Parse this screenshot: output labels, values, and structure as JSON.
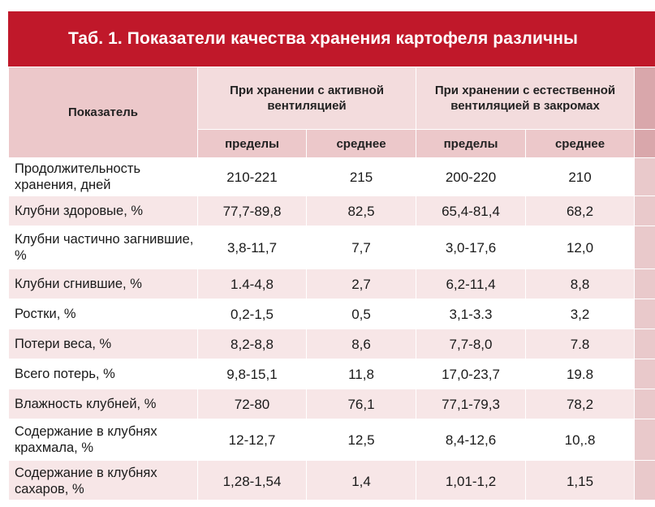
{
  "title": "Таб. 1. Показатели качества хранения картофеля различны",
  "header": {
    "indicator": "Показатель",
    "group_active": "При хранении с активной вентиляцией",
    "group_natural": "При хранении с естественной вентиляцией в закромах",
    "limits": "пределы",
    "average": "среднее"
  },
  "rows": [
    {
      "label": "Продолжительность хранения, дней",
      "active_limits": "210-221",
      "active_avg": "215",
      "natural_limits": "200-220",
      "natural_avg": "210"
    },
    {
      "label": "Клубни здоровые, %",
      "active_limits": "77,7-89,8",
      "active_avg": "82,5",
      "natural_limits": "65,4-81,4",
      "natural_avg": "68,2"
    },
    {
      "label": "Клубни частично загнившие, %",
      "active_limits": "3,8-11,7",
      "active_avg": "7,7",
      "natural_limits": "3,0-17,6",
      "natural_avg": "12,0"
    },
    {
      "label": "Клубни сгнившие, %",
      "active_limits": "1.4-4,8",
      "active_avg": "2,7",
      "natural_limits": "6,2-11,4",
      "natural_avg": "8,8"
    },
    {
      "label": "Ростки, %",
      "active_limits": "0,2-1,5",
      "active_avg": "0,5",
      "natural_limits": "3,1-3.3",
      "natural_avg": "3,2"
    },
    {
      "label": "Потери веса, %",
      "active_limits": "8,2-8,8",
      "active_avg": "8,6",
      "natural_limits": "7,7-8,0",
      "natural_avg": "7.8"
    },
    {
      "label": "Всего потерь, %",
      "active_limits": "9,8-15,1",
      "active_avg": "11,8",
      "natural_limits": "17,0-23,7",
      "natural_avg": "19.8"
    },
    {
      "label": "Влажность клубней, %",
      "active_limits": "72-80",
      "active_avg": "76,1",
      "natural_limits": "77,1-79,3",
      "natural_avg": "78,2"
    },
    {
      "label": "Содержание в клубнях крахмала, %",
      "active_limits": "12-12,7",
      "active_avg": "12,5",
      "natural_limits": "8,4-12,6",
      "natural_avg": "10,.8"
    },
    {
      "label": "Содержание в клубнях сахаров, %",
      "active_limits": "1,28-1,54",
      "active_avg": "1,4",
      "natural_limits": "1,01-1,2",
      "natural_avg": "1,15"
    }
  ]
}
